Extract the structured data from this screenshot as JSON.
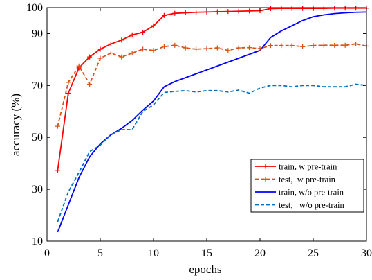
{
  "chart_data": {
    "type": "line",
    "xlabel": "epochs",
    "ylabel": "accuracy (%)",
    "xlim": [
      0,
      30
    ],
    "ylim": [
      10,
      100
    ],
    "xticks": [
      0,
      5,
      10,
      15,
      20,
      25,
      30
    ],
    "yticks": [
      10,
      30,
      50,
      70,
      90,
      100
    ],
    "grid": false,
    "legend_position": "lower-right",
    "x": [
      1,
      2,
      3,
      4,
      5,
      6,
      7,
      8,
      9,
      10,
      11,
      12,
      13,
      14,
      15,
      16,
      17,
      18,
      19,
      20,
      21,
      22,
      23,
      24,
      25,
      26,
      27,
      28,
      29,
      30
    ],
    "series": [
      {
        "name": "train, w pre-train",
        "color": "#ff0000",
        "style": "solid",
        "marker": "plus",
        "values": [
          37.3,
          67.0,
          76.8,
          81.0,
          84.0,
          86.0,
          87.5,
          89.5,
          90.5,
          93.0,
          97.0,
          97.8,
          98.0,
          98.2,
          98.3,
          98.4,
          98.5,
          98.6,
          98.7,
          98.8,
          99.6,
          99.7,
          99.7,
          99.7,
          99.7,
          99.7,
          99.8,
          99.8,
          99.8,
          99.8
        ]
      },
      {
        "name": "test,  w pre-train",
        "color": "#d95319",
        "style": "dashed",
        "marker": "plus",
        "values": [
          54.3,
          71.2,
          77.5,
          70.5,
          80.5,
          82.5,
          81.0,
          82.5,
          84.0,
          83.5,
          85.0,
          85.5,
          84.5,
          84.0,
          84.2,
          84.5,
          83.5,
          84.5,
          84.6,
          84.2,
          85.4,
          85.4,
          85.4,
          85.0,
          85.4,
          85.5,
          85.5,
          85.5,
          86.0,
          85.2
        ]
      },
      {
        "name": "train, w/o pre-train",
        "color": "#0000ff",
        "style": "solid",
        "marker": "none",
        "values": [
          13.5,
          24.0,
          34.5,
          42.5,
          47.5,
          51.0,
          53.5,
          56.5,
          60.5,
          64.0,
          69.5,
          71.5,
          73.0,
          74.5,
          76.0,
          77.5,
          79.0,
          80.5,
          82.0,
          83.5,
          88.5,
          91.0,
          93.0,
          95.0,
          96.5,
          97.2,
          97.7,
          98.0,
          98.2,
          98.3
        ]
      },
      {
        "name": "test,   w/o pre-train",
        "color": "#0072bd",
        "style": "dashed",
        "marker": "none",
        "values": [
          17.5,
          29.0,
          36.5,
          44.5,
          47.0,
          51.0,
          53.0,
          53.0,
          60.0,
          62.5,
          67.3,
          67.7,
          68.0,
          67.5,
          68.0,
          68.0,
          67.5,
          68.2,
          67.0,
          69.0,
          70.0,
          70.0,
          69.5,
          70.0,
          70.0,
          69.5,
          69.5,
          69.5,
          70.5,
          70.0
        ]
      }
    ]
  }
}
